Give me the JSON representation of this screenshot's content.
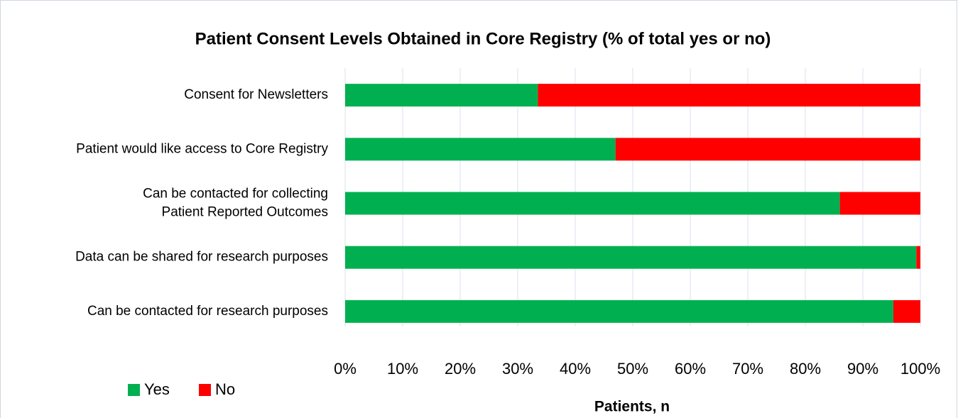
{
  "chart_data": {
    "type": "stacked_barh",
    "title": "Patient Consent Levels Obtained in Core Registry (% of total yes or no)",
    "categories": [
      "Consent for Newsletters",
      "Patient would like access to Core Registry",
      "Can be contacted for collecting\nPatient Reported Outcomes",
      "Data can be shared for research purposes",
      "Can be contacted for research purposes"
    ],
    "series": [
      {
        "name": "Yes",
        "color": "#00b050",
        "values": [
          33.5,
          47,
          86,
          99.3,
          95.3
        ]
      },
      {
        "name": "No",
        "color": "#ff0000",
        "values": [
          66.5,
          53,
          14,
          0.7,
          4.7
        ]
      }
    ],
    "xlim": [
      0,
      100
    ],
    "xticks": [
      {
        "value": 0,
        "label": "0%"
      },
      {
        "value": 10,
        "label": "10%"
      },
      {
        "value": 20,
        "label": "20%"
      },
      {
        "value": 30,
        "label": "30%"
      },
      {
        "value": 40,
        "label": "40%"
      },
      {
        "value": 50,
        "label": "50%"
      },
      {
        "value": 60,
        "label": "60%"
      },
      {
        "value": 70,
        "label": "70%"
      },
      {
        "value": 80,
        "label": "80%"
      },
      {
        "value": 90,
        "label": "90%"
      },
      {
        "value": 100,
        "label": "100%"
      }
    ],
    "xlabel": "Patients, n",
    "grid": true,
    "legend": "bottom-left"
  }
}
